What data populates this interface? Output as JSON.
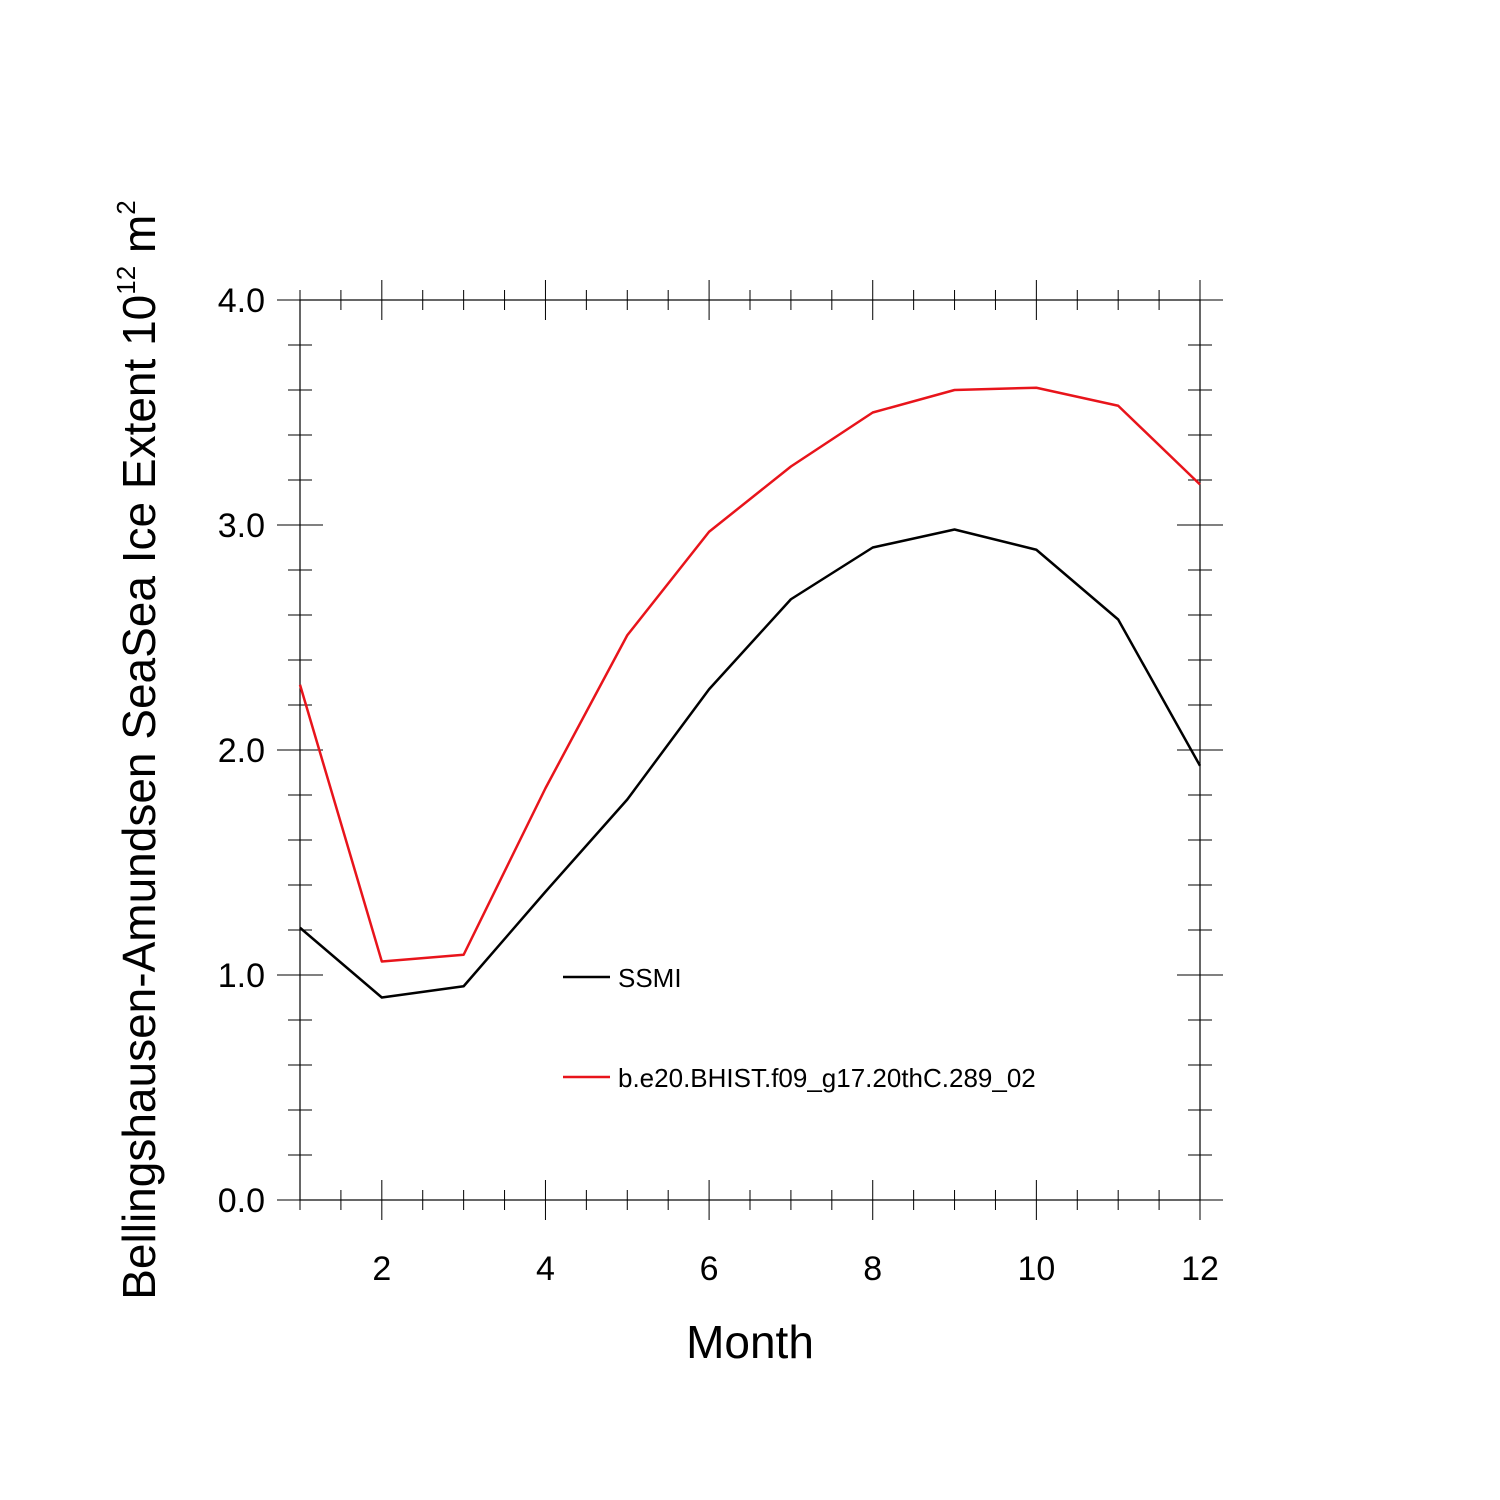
{
  "chart_data": {
    "type": "line",
    "xlabel": "Month",
    "ylabel": {
      "main": "Bellingshausen-Amundsen SeaSea Ice Extent 10",
      "exponent": "12",
      "unit": " m",
      "unit_exponent": "2"
    },
    "xlim": [
      1,
      12
    ],
    "ylim": [
      0,
      4
    ],
    "x_ticks": [
      2,
      4,
      6,
      8,
      10,
      12
    ],
    "x_tick_labels": [
      "2",
      "4",
      "6",
      "8",
      "10",
      "12"
    ],
    "y_ticks": [
      0,
      1,
      2,
      3,
      4
    ],
    "y_tick_labels": [
      "0.0",
      "1.0",
      "2.0",
      "3.0",
      "4.0"
    ],
    "x": [
      1,
      2,
      3,
      4,
      5,
      6,
      7,
      8,
      9,
      10,
      11,
      12
    ],
    "series": [
      {
        "name": "SSMI",
        "color": "#000000",
        "values": [
          1.21,
          0.9,
          0.95,
          1.37,
          1.78,
          2.27,
          2.67,
          2.9,
          2.98,
          2.89,
          2.58,
          1.93
        ]
      },
      {
        "name": "b.e20.BHIST.f09_g17.20thC.289_02",
        "color": "#e8141b",
        "values": [
          2.29,
          1.06,
          1.09,
          1.83,
          2.51,
          2.97,
          3.26,
          3.5,
          3.6,
          3.61,
          3.53,
          3.18
        ]
      }
    ],
    "legend": "inside-lower-center",
    "grid": false
  }
}
